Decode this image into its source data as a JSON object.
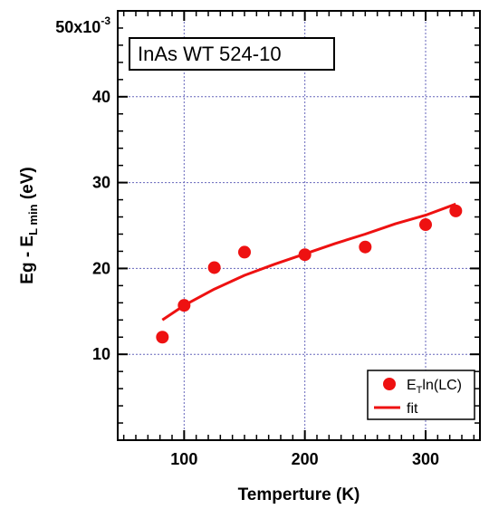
{
  "chart_data": {
    "type": "scatter",
    "annotation": "InAs WT 524-10",
    "xlabel": "Temperture (K)",
    "ylabel": {
      "pre": "Eg - E",
      "sub": "L min",
      "post": "  (eV)"
    },
    "y_scale_label": {
      "mantissa": "50x10",
      "exponent": "-3"
    },
    "xlim": [
      45,
      345
    ],
    "ylim": [
      0,
      0.05
    ],
    "x_ticks": [
      {
        "value": 100,
        "label": "100"
      },
      {
        "value": 200,
        "label": "200"
      },
      {
        "value": 300,
        "label": "300"
      }
    ],
    "y_ticks": [
      {
        "value": 0.01,
        "label": "10"
      },
      {
        "value": 0.02,
        "label": "20"
      },
      {
        "value": 0.03,
        "label": "30"
      },
      {
        "value": 0.04,
        "label": "40"
      }
    ],
    "grid": true,
    "legend_position": "bottom-right",
    "colors": {
      "series": "#ee1111",
      "grid": "#6666bb"
    },
    "series": [
      {
        "name": {
          "pre": "E",
          "sub": "T",
          "post": "ln(LC)"
        },
        "kind": "markers",
        "x": [
          82,
          100,
          125,
          150,
          200,
          250,
          300,
          325
        ],
        "y": [
          0.012,
          0.0157,
          0.0201,
          0.0219,
          0.0216,
          0.0225,
          0.0251,
          0.0267
        ]
      },
      {
        "name": "fit",
        "kind": "line",
        "x": [
          82,
          100,
          125,
          150,
          175,
          200,
          225,
          250,
          275,
          300,
          325
        ],
        "y": [
          0.014,
          0.0157,
          0.0176,
          0.0192,
          0.0205,
          0.0217,
          0.0229,
          0.024,
          0.0252,
          0.0262,
          0.0275
        ]
      }
    ]
  }
}
